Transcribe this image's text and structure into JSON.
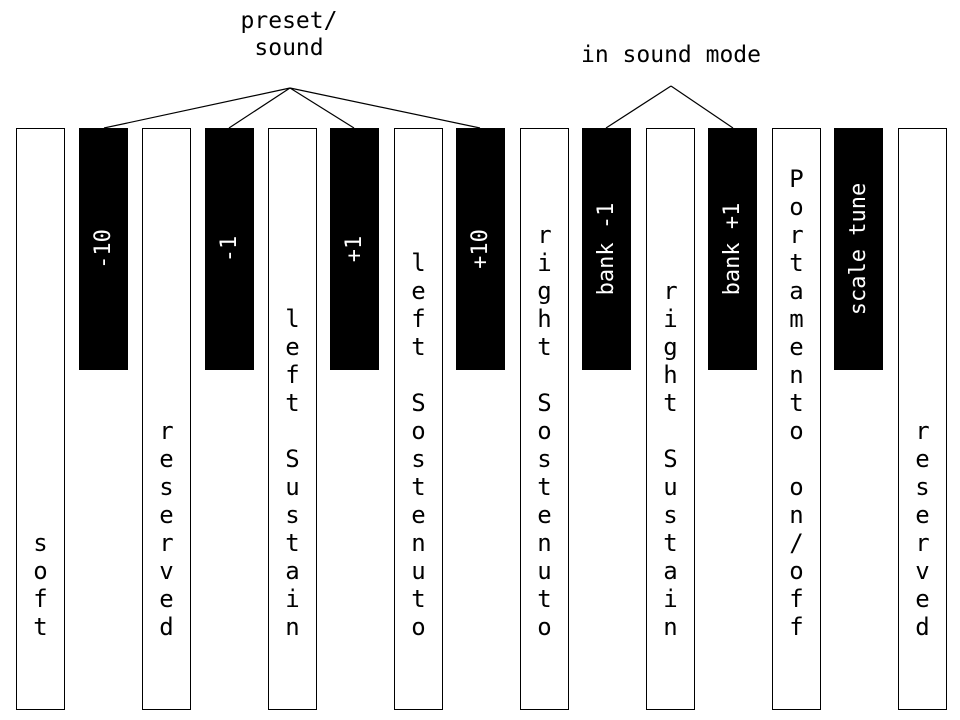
{
  "groups": {
    "preset_sound": "preset/\nsound",
    "sound_mode": "in sound mode"
  },
  "white_keys": [
    {
      "label": "soft"
    },
    {
      "label": "reserved"
    },
    {
      "label": "left Sustain"
    },
    {
      "label": "left Sostenuto"
    },
    {
      "label": "right Sostenuto"
    },
    {
      "label": "right Sustain"
    },
    {
      "label": "Portamento on/off"
    },
    {
      "label": "reserved"
    }
  ],
  "black_keys": [
    {
      "label": "-10"
    },
    {
      "label": "-1"
    },
    {
      "label": "+1"
    },
    {
      "label": "+10"
    },
    {
      "label": "bank -1"
    },
    {
      "label": "bank +1"
    },
    {
      "label": "scale tune"
    }
  ]
}
